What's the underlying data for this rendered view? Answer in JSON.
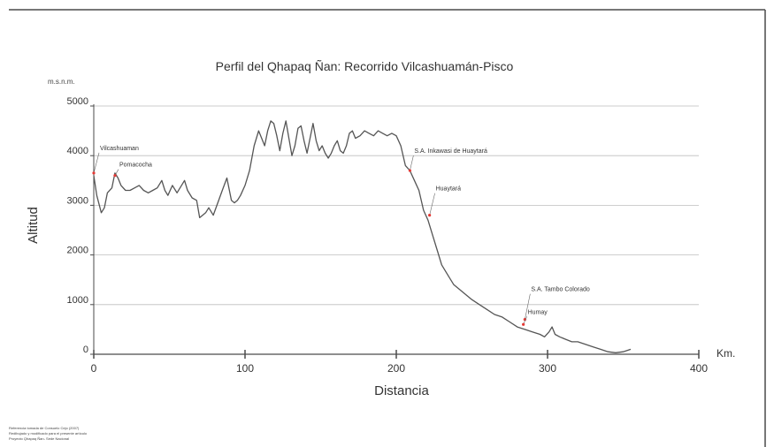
{
  "chart_data": {
    "type": "line",
    "title": "Perfil del Qhapaq Ñan: Recorrido Vilcashuamán-Pisco",
    "xlabel": "Distancia",
    "ylabel": "Altitud",
    "y_unit": "m.s.n.m.",
    "x_unit": "Km.",
    "xlim": [
      0,
      400
    ],
    "ylim": [
      0,
      5000
    ],
    "x_ticks": [
      "0",
      "100",
      "200",
      "300",
      "400"
    ],
    "y_ticks": [
      "0",
      "1000",
      "2000",
      "3000",
      "4000",
      "5000"
    ],
    "grid": true,
    "series": [
      {
        "x": [
          0,
          2,
          5,
          7,
          9,
          12,
          14,
          16,
          18,
          21,
          24,
          27,
          30,
          33,
          36,
          39,
          42,
          45,
          47,
          49,
          52,
          55,
          58,
          60,
          62,
          65,
          68,
          70,
          72,
          74,
          76,
          79,
          82,
          85,
          88,
          91,
          93,
          95,
          97,
          100,
          103,
          106,
          109,
          111,
          113,
          115,
          117,
          119,
          121,
          123,
          125,
          127,
          129,
          131,
          133,
          135,
          137,
          139,
          141,
          143,
          145,
          147,
          149,
          151,
          153,
          155,
          157,
          159,
          161,
          163,
          165,
          167,
          169,
          171,
          173,
          176,
          179,
          182,
          185,
          188,
          191,
          194,
          197,
          200,
          203,
          206,
          209,
          212,
          215,
          218,
          221,
          224,
          227,
          230,
          234,
          238,
          242,
          246,
          250,
          255,
          260,
          265,
          270,
          275,
          280,
          285,
          290,
          295,
          298,
          301,
          303,
          305,
          308,
          312,
          316,
          320,
          325,
          330,
          335,
          340,
          345,
          350,
          355
        ],
        "y": [
          3600,
          3200,
          2850,
          2950,
          3250,
          3350,
          3650,
          3550,
          3400,
          3300,
          3300,
          3350,
          3400,
          3300,
          3250,
          3300,
          3350,
          3500,
          3300,
          3200,
          3400,
          3250,
          3400,
          3500,
          3300,
          3150,
          3100,
          2750,
          2800,
          2850,
          2950,
          2800,
          3050,
          3300,
          3550,
          3100,
          3050,
          3100,
          3200,
          3400,
          3700,
          4200,
          4500,
          4350,
          4200,
          4500,
          4700,
          4650,
          4400,
          4100,
          4450,
          4700,
          4350,
          4000,
          4200,
          4550,
          4600,
          4300,
          4050,
          4350,
          4650,
          4300,
          4100,
          4200,
          4050,
          3950,
          4050,
          4200,
          4300,
          4100,
          4050,
          4200,
          4450,
          4500,
          4350,
          4400,
          4500,
          4450,
          4400,
          4500,
          4450,
          4400,
          4450,
          4400,
          4200,
          3800,
          3700,
          3500,
          3300,
          2900,
          2700,
          2400,
          2100,
          1800,
          1600,
          1400,
          1300,
          1200,
          1100,
          1000,
          900,
          800,
          750,
          650,
          550,
          500,
          450,
          400,
          350,
          450,
          550,
          400,
          350,
          300,
          250,
          250,
          200,
          150,
          100,
          50,
          30,
          50,
          100
        ]
      }
    ],
    "annotations": [
      {
        "label": "Vilcashuaman",
        "x": 0,
        "y": 3650
      },
      {
        "label": "Pomacocha",
        "x": 14,
        "y": 3600
      },
      {
        "label": "S.A. Inkawasi de Huaytará",
        "x": 209,
        "y": 3700
      },
      {
        "label": "Huaytará",
        "x": 222,
        "y": 2800
      },
      {
        "label": "S.A. Tambo Colorado",
        "x": 285,
        "y": 700
      },
      {
        "label": "Humay",
        "x": 284,
        "y": 600
      }
    ]
  },
  "footnote": {
    "line1": "Referencia tomada de Consuelo Cejo (2007)",
    "line2": "Redibujado y modificado para el presente artículo",
    "line3": "Proyecto Qhapaq Ñan- Sede Nacional"
  },
  "colors": {
    "line": "#555555",
    "grid": "#bdbdbd",
    "marker": "#e53935",
    "frame": "#4a4a4a"
  }
}
